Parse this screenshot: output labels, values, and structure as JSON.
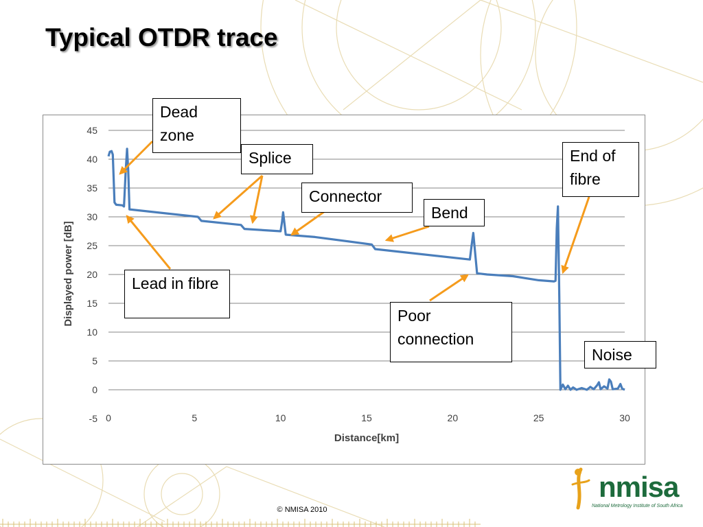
{
  "slide": {
    "title": "Typical OTDR trace",
    "copyright": "© NMISA 2010"
  },
  "logo": {
    "wordmark": "nmisa",
    "tagline": "National Metrology Institute of South Africa"
  },
  "annotations": {
    "dead_zone": "Dead zone",
    "splice": "Splice",
    "connector": "Connector",
    "bend": "Bend",
    "end_of_fibre": "End of fibre",
    "lead_in_fibre": "Lead in fibre",
    "poor_connection": "Poor connection",
    "noise": "Noise"
  },
  "colors": {
    "trace": "#4a7ebb",
    "arrow": "#f59b1c",
    "gridline": "#868686",
    "decoration": "#e9dcb4"
  },
  "chart_data": {
    "type": "line",
    "title": "",
    "xlabel": "Distance[km]",
    "ylabel": "Displayed power [dB]",
    "xlim": [
      0,
      30
    ],
    "ylim": [
      -5,
      45
    ],
    "xticks": [
      0,
      5,
      10,
      15,
      20,
      25,
      30
    ],
    "yticks": [
      -5,
      0,
      5,
      10,
      15,
      20,
      25,
      30,
      35,
      40,
      45
    ],
    "grid": "horizontal",
    "legend": "none",
    "series": [
      {
        "points": [
          [
            0,
            40.5
          ],
          [
            0.08,
            41.3
          ],
          [
            0.18,
            41.4
          ],
          [
            0.25,
            40.8
          ],
          [
            0.35,
            32.5
          ],
          [
            0.45,
            32.1
          ],
          [
            0.8,
            32.0
          ],
          [
            0.9,
            31.8
          ],
          [
            1.0,
            38.0
          ],
          [
            1.08,
            41.8
          ],
          [
            1.15,
            38.0
          ],
          [
            1.22,
            31.3
          ],
          [
            5.2,
            30.0
          ],
          [
            5.4,
            29.3
          ],
          [
            7.7,
            28.6
          ],
          [
            7.9,
            27.9
          ],
          [
            10.0,
            27.5
          ],
          [
            10.08,
            29.0
          ],
          [
            10.15,
            30.8
          ],
          [
            10.22,
            29.0
          ],
          [
            10.3,
            26.9
          ],
          [
            12.0,
            26.5
          ],
          [
            15.3,
            25.2
          ],
          [
            15.5,
            24.4
          ],
          [
            21.0,
            22.6
          ],
          [
            21.1,
            25.0
          ],
          [
            21.2,
            27.2
          ],
          [
            21.3,
            24.0
          ],
          [
            21.42,
            20.2
          ],
          [
            22.0,
            20.0
          ],
          [
            23.5,
            19.7
          ],
          [
            25.0,
            19.0
          ],
          [
            25.9,
            18.8
          ],
          [
            25.98,
            18.9
          ],
          [
            26.05,
            28.0
          ],
          [
            26.12,
            31.8
          ],
          [
            26.2,
            16.0
          ],
          [
            26.26,
            0.0
          ],
          [
            26.4,
            0.9
          ],
          [
            26.55,
            0.1
          ],
          [
            26.7,
            0.7
          ],
          [
            26.85,
            0.0
          ],
          [
            27.0,
            0.4
          ],
          [
            27.2,
            0.0
          ],
          [
            27.5,
            0.3
          ],
          [
            27.8,
            0.0
          ],
          [
            28.0,
            0.5
          ],
          [
            28.2,
            0.1
          ],
          [
            28.4,
            0.8
          ],
          [
            28.5,
            1.3
          ],
          [
            28.6,
            0.1
          ],
          [
            28.8,
            0.6
          ],
          [
            29.0,
            0.2
          ],
          [
            29.1,
            1.8
          ],
          [
            29.2,
            1.4
          ],
          [
            29.3,
            0.1
          ],
          [
            29.6,
            0.2
          ],
          [
            29.75,
            1.0
          ],
          [
            29.85,
            0.2
          ],
          [
            30.0,
            0.0
          ]
        ]
      }
    ]
  }
}
